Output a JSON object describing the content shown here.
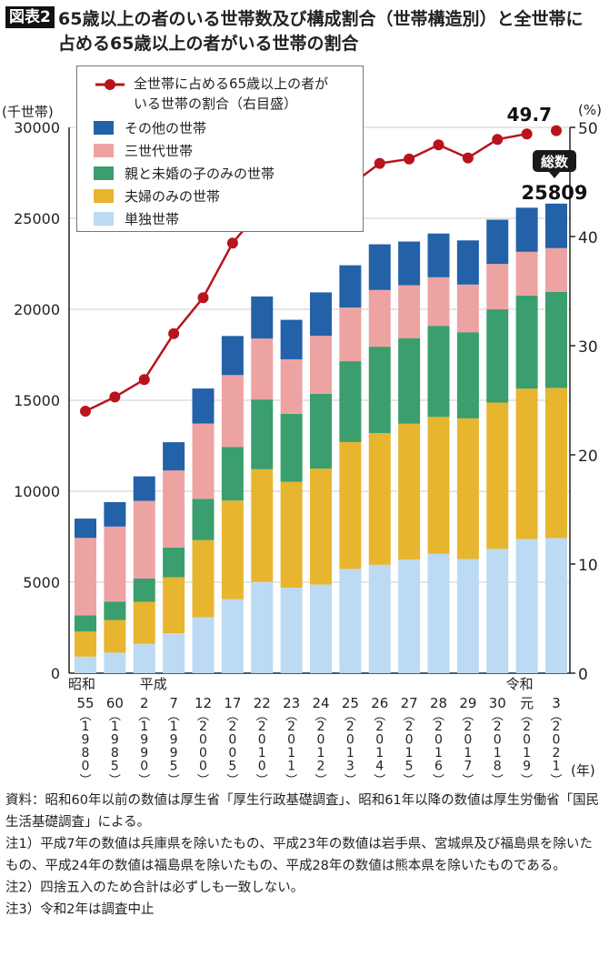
{
  "title": {
    "badge": "図表2",
    "line1": "65歳以上の者のいる世帯数及び構成割合（世帯構造別）と全世帯に",
    "line2": "占める65歳以上の者がいる世帯の割合"
  },
  "chart_data": {
    "type": "bar",
    "stacked": true,
    "ylabel_left": "(千世帯)",
    "ylabel_right": "(%)",
    "xunit": "(年)",
    "ylim_left": [
      0,
      30000
    ],
    "yticks_left": [
      0,
      5000,
      10000,
      15000,
      20000,
      25000,
      30000
    ],
    "ylim_right": [
      0,
      50
    ],
    "yticks_right": [
      0,
      10,
      20,
      30,
      40,
      50
    ],
    "grid": true,
    "legend_position": "top-left",
    "x_labels": [
      {
        "era": "昭和",
        "num": "55",
        "year": "1980"
      },
      {
        "era": "",
        "num": "60",
        "year": "1985"
      },
      {
        "era": "平成",
        "num": "2",
        "year": "1990"
      },
      {
        "era": "",
        "num": "7",
        "year": "1995"
      },
      {
        "era": "",
        "num": "12",
        "year": "2000"
      },
      {
        "era": "",
        "num": "17",
        "year": "2005"
      },
      {
        "era": "",
        "num": "22",
        "year": "2010"
      },
      {
        "era": "",
        "num": "23",
        "year": "2011"
      },
      {
        "era": "",
        "num": "24",
        "year": "2012"
      },
      {
        "era": "",
        "num": "25",
        "year": "2013"
      },
      {
        "era": "",
        "num": "26",
        "year": "2014"
      },
      {
        "era": "",
        "num": "27",
        "year": "2015"
      },
      {
        "era": "",
        "num": "28",
        "year": "2016"
      },
      {
        "era": "",
        "num": "29",
        "year": "2017"
      },
      {
        "era": "",
        "num": "30",
        "year": "2018"
      },
      {
        "era": "令和",
        "num": "元",
        "year": "2019"
      },
      {
        "era": "",
        "num": "3",
        "year": "2021"
      }
    ],
    "series": [
      {
        "name": "単独世帯",
        "color": "#bcdaf3",
        "values": [
          910,
          1131,
          1613,
          2199,
          3079,
          4069,
          5018,
          4697,
          4871,
          5730,
          5959,
          6243,
          6559,
          6274,
          6830,
          7369,
          7427
        ]
      },
      {
        "name": "夫婦のみの世帯",
        "color": "#e8b52f",
        "values": [
          1379,
          1795,
          2314,
          3075,
          4234,
          5420,
          6190,
          5817,
          6373,
          6974,
          7242,
          7469,
          7526,
          7731,
          8045,
          8270,
          8251
        ]
      },
      {
        "name": "親と未婚の子のみの世帯",
        "color": "#3a9e6e",
        "values": [
          891,
          1012,
          1275,
          1636,
          2268,
          2948,
          3837,
          3743,
          4113,
          4442,
          4743,
          4704,
          5007,
          4734,
          5122,
          5118,
          5284
        ]
      },
      {
        "name": "三世代世帯",
        "color": "#eea3a3",
        "values": [
          4254,
          4119,
          4270,
          4232,
          4141,
          3947,
          3348,
          2994,
          3184,
          2953,
          3117,
          2906,
          2668,
          2621,
          2493,
          2404,
          2401
        ]
      },
      {
        "name": "その他の世帯",
        "color": "#2361a8",
        "values": [
          1062,
          1342,
          1345,
          1553,
          1924,
          2148,
          2313,
          2171,
          2389,
          2321,
          2512,
          2402,
          2405,
          2427,
          2437,
          2423,
          2446
        ]
      }
    ],
    "line": {
      "name": "全世帯に占める65歳以上の者がいる世帯の割合（右目盛）",
      "name_line1": "全世帯に占める65歳以上の者が",
      "name_line2": "いる世帯の割合（右目盛）",
      "color": "#b8141c",
      "axis": "right",
      "values": [
        24.0,
        25.3,
        26.9,
        31.1,
        34.4,
        39.4,
        42.6,
        41.6,
        43.4,
        44.7,
        46.7,
        47.1,
        48.4,
        47.2,
        48.9,
        49.4,
        49.7
      ]
    },
    "annotations": {
      "last_pct": "49.7",
      "total_label": "総数",
      "total_value": "25809"
    }
  },
  "notes": [
    "資料：昭和60年以前の数値は厚生省「厚生行政基礎調査」、昭和61年以降の数値は厚生労働省「国民生活基礎調査」による。",
    "注1）平成7年の数値は兵庫県を除いたもの、平成23年の数値は岩手県、宮城県及び福島県を除いたもの、平成24年の数値は福島県を除いたもの、平成28年の数値は熊本県を除いたものである。",
    "注2）四捨五入のため合計は必ずしも一致しない。",
    "注3）令和2年は調査中止"
  ]
}
